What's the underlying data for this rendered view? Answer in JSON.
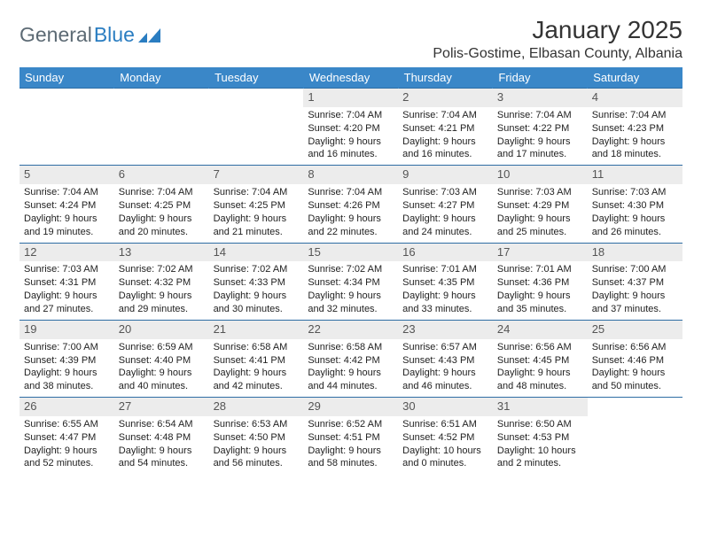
{
  "logo": {
    "text1": "General",
    "text2": "Blue"
  },
  "title": "January 2025",
  "location": "Polis-Gostime, Elbasan County, Albania",
  "colors": {
    "header_bg": "#3a87c8",
    "header_text": "#ffffff",
    "daynum_bg": "#ececec",
    "row_border": "#2e6da4",
    "logo_gray": "#5c6a74",
    "logo_blue": "#2a7dc1"
  },
  "day_headers": [
    "Sunday",
    "Monday",
    "Tuesday",
    "Wednesday",
    "Thursday",
    "Friday",
    "Saturday"
  ],
  "weeks": [
    [
      null,
      null,
      null,
      {
        "n": "1",
        "lines": [
          "Sunrise: 7:04 AM",
          "Sunset: 4:20 PM",
          "Daylight: 9 hours",
          "and 16 minutes."
        ]
      },
      {
        "n": "2",
        "lines": [
          "Sunrise: 7:04 AM",
          "Sunset: 4:21 PM",
          "Daylight: 9 hours",
          "and 16 minutes."
        ]
      },
      {
        "n": "3",
        "lines": [
          "Sunrise: 7:04 AM",
          "Sunset: 4:22 PM",
          "Daylight: 9 hours",
          "and 17 minutes."
        ]
      },
      {
        "n": "4",
        "lines": [
          "Sunrise: 7:04 AM",
          "Sunset: 4:23 PM",
          "Daylight: 9 hours",
          "and 18 minutes."
        ]
      }
    ],
    [
      {
        "n": "5",
        "lines": [
          "Sunrise: 7:04 AM",
          "Sunset: 4:24 PM",
          "Daylight: 9 hours",
          "and 19 minutes."
        ]
      },
      {
        "n": "6",
        "lines": [
          "Sunrise: 7:04 AM",
          "Sunset: 4:25 PM",
          "Daylight: 9 hours",
          "and 20 minutes."
        ]
      },
      {
        "n": "7",
        "lines": [
          "Sunrise: 7:04 AM",
          "Sunset: 4:25 PM",
          "Daylight: 9 hours",
          "and 21 minutes."
        ]
      },
      {
        "n": "8",
        "lines": [
          "Sunrise: 7:04 AM",
          "Sunset: 4:26 PM",
          "Daylight: 9 hours",
          "and 22 minutes."
        ]
      },
      {
        "n": "9",
        "lines": [
          "Sunrise: 7:03 AM",
          "Sunset: 4:27 PM",
          "Daylight: 9 hours",
          "and 24 minutes."
        ]
      },
      {
        "n": "10",
        "lines": [
          "Sunrise: 7:03 AM",
          "Sunset: 4:29 PM",
          "Daylight: 9 hours",
          "and 25 minutes."
        ]
      },
      {
        "n": "11",
        "lines": [
          "Sunrise: 7:03 AM",
          "Sunset: 4:30 PM",
          "Daylight: 9 hours",
          "and 26 minutes."
        ]
      }
    ],
    [
      {
        "n": "12",
        "lines": [
          "Sunrise: 7:03 AM",
          "Sunset: 4:31 PM",
          "Daylight: 9 hours",
          "and 27 minutes."
        ]
      },
      {
        "n": "13",
        "lines": [
          "Sunrise: 7:02 AM",
          "Sunset: 4:32 PM",
          "Daylight: 9 hours",
          "and 29 minutes."
        ]
      },
      {
        "n": "14",
        "lines": [
          "Sunrise: 7:02 AM",
          "Sunset: 4:33 PM",
          "Daylight: 9 hours",
          "and 30 minutes."
        ]
      },
      {
        "n": "15",
        "lines": [
          "Sunrise: 7:02 AM",
          "Sunset: 4:34 PM",
          "Daylight: 9 hours",
          "and 32 minutes."
        ]
      },
      {
        "n": "16",
        "lines": [
          "Sunrise: 7:01 AM",
          "Sunset: 4:35 PM",
          "Daylight: 9 hours",
          "and 33 minutes."
        ]
      },
      {
        "n": "17",
        "lines": [
          "Sunrise: 7:01 AM",
          "Sunset: 4:36 PM",
          "Daylight: 9 hours",
          "and 35 minutes."
        ]
      },
      {
        "n": "18",
        "lines": [
          "Sunrise: 7:00 AM",
          "Sunset: 4:37 PM",
          "Daylight: 9 hours",
          "and 37 minutes."
        ]
      }
    ],
    [
      {
        "n": "19",
        "lines": [
          "Sunrise: 7:00 AM",
          "Sunset: 4:39 PM",
          "Daylight: 9 hours",
          "and 38 minutes."
        ]
      },
      {
        "n": "20",
        "lines": [
          "Sunrise: 6:59 AM",
          "Sunset: 4:40 PM",
          "Daylight: 9 hours",
          "and 40 minutes."
        ]
      },
      {
        "n": "21",
        "lines": [
          "Sunrise: 6:58 AM",
          "Sunset: 4:41 PM",
          "Daylight: 9 hours",
          "and 42 minutes."
        ]
      },
      {
        "n": "22",
        "lines": [
          "Sunrise: 6:58 AM",
          "Sunset: 4:42 PM",
          "Daylight: 9 hours",
          "and 44 minutes."
        ]
      },
      {
        "n": "23",
        "lines": [
          "Sunrise: 6:57 AM",
          "Sunset: 4:43 PM",
          "Daylight: 9 hours",
          "and 46 minutes."
        ]
      },
      {
        "n": "24",
        "lines": [
          "Sunrise: 6:56 AM",
          "Sunset: 4:45 PM",
          "Daylight: 9 hours",
          "and 48 minutes."
        ]
      },
      {
        "n": "25",
        "lines": [
          "Sunrise: 6:56 AM",
          "Sunset: 4:46 PM",
          "Daylight: 9 hours",
          "and 50 minutes."
        ]
      }
    ],
    [
      {
        "n": "26",
        "lines": [
          "Sunrise: 6:55 AM",
          "Sunset: 4:47 PM",
          "Daylight: 9 hours",
          "and 52 minutes."
        ]
      },
      {
        "n": "27",
        "lines": [
          "Sunrise: 6:54 AM",
          "Sunset: 4:48 PM",
          "Daylight: 9 hours",
          "and 54 minutes."
        ]
      },
      {
        "n": "28",
        "lines": [
          "Sunrise: 6:53 AM",
          "Sunset: 4:50 PM",
          "Daylight: 9 hours",
          "and 56 minutes."
        ]
      },
      {
        "n": "29",
        "lines": [
          "Sunrise: 6:52 AM",
          "Sunset: 4:51 PM",
          "Daylight: 9 hours",
          "and 58 minutes."
        ]
      },
      {
        "n": "30",
        "lines": [
          "Sunrise: 6:51 AM",
          "Sunset: 4:52 PM",
          "Daylight: 10 hours",
          "and 0 minutes."
        ]
      },
      {
        "n": "31",
        "lines": [
          "Sunrise: 6:50 AM",
          "Sunset: 4:53 PM",
          "Daylight: 10 hours",
          "and 2 minutes."
        ]
      },
      null
    ]
  ]
}
